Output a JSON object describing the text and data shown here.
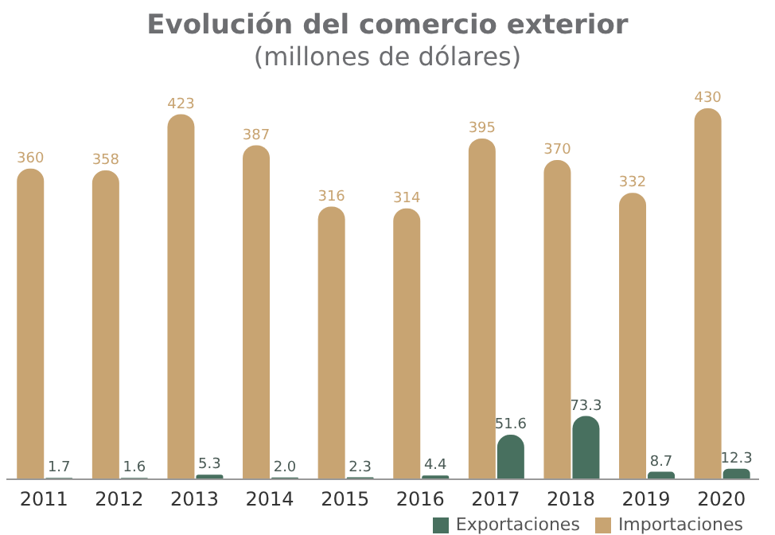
{
  "chart_data": {
    "type": "bar",
    "title": "Evolución del comercio exterior",
    "subtitle": "(millones de dólares)",
    "categories": [
      "2011",
      "2012",
      "2013",
      "2014",
      "2015",
      "2016",
      "2017",
      "2018",
      "2019",
      "2020"
    ],
    "series": [
      {
        "name": "Importaciones",
        "color": "#c8a472",
        "values": [
          360,
          358,
          423,
          387,
          316,
          314,
          395,
          370,
          332,
          430
        ]
      },
      {
        "name": "Exportaciones",
        "color": "#48705f",
        "values": [
          1.7,
          1.6,
          5.3,
          2.0,
          2.3,
          4.4,
          51.6,
          73.3,
          8.7,
          12.3
        ],
        "value_labels": [
          "1.7",
          "1.6",
          "5.3",
          "2.0",
          "2.3",
          "4.4",
          "51.6",
          "73.3",
          "8.7",
          "12.3"
        ]
      }
    ],
    "data_labels": true,
    "legend": "bottom right",
    "grid": false
  }
}
